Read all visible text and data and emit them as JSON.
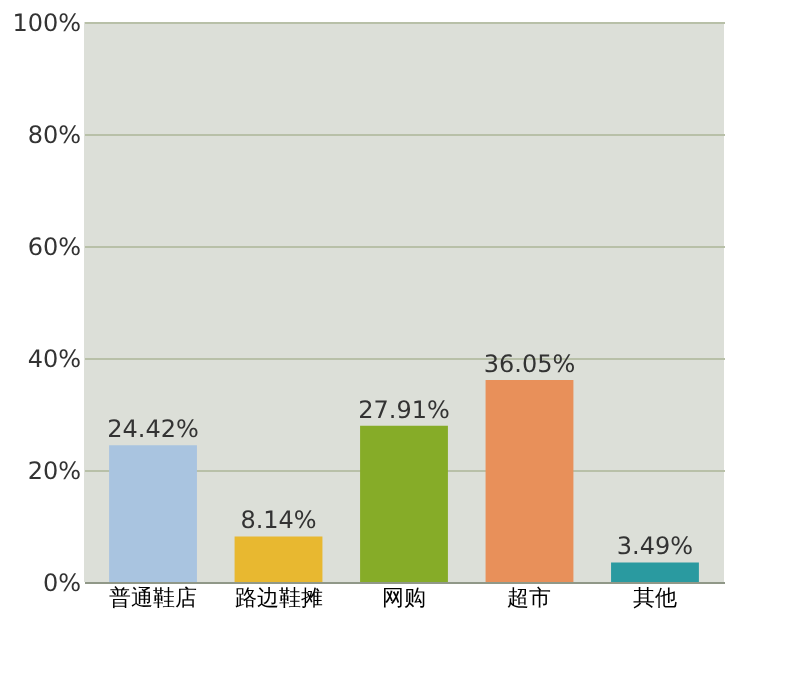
{
  "chart_data": {
    "type": "bar",
    "categories": [
      "普通鞋店",
      "路边鞋摊",
      "网购",
      "超市",
      "其他"
    ],
    "values": [
      24.42,
      8.14,
      27.91,
      36.05,
      3.49
    ],
    "colors": [
      "#a9c4e0",
      "#e8b830",
      "#86ac28",
      "#e8905a",
      "#2a9aa0"
    ],
    "value_labels": [
      "24.42%",
      "8.14%",
      "27.91%",
      "36.05%",
      "3.49%"
    ],
    "ylim": [
      0,
      100
    ],
    "yticks": [
      {
        "value": 0,
        "label": "0%"
      },
      {
        "value": 20,
        "label": "20%"
      },
      {
        "value": 40,
        "label": "40%"
      },
      {
        "value": 60,
        "label": "60%"
      },
      {
        "value": 80,
        "label": "80%"
      },
      {
        "value": 100,
        "label": "100%"
      }
    ],
    "grid": "y"
  }
}
